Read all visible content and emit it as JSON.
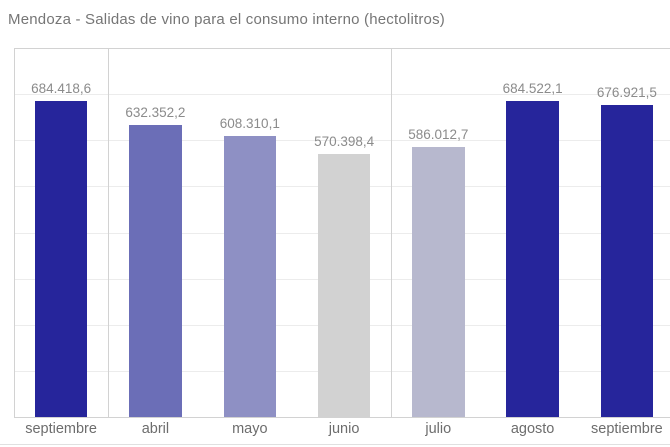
{
  "title": "Mendoza - Salidas de vino para el consumo interno (hectolitros)",
  "chart_data": {
    "type": "bar",
    "title": "Mendoza - Salidas de vino para el consumo interno (hectolitros)",
    "categories": [
      "septiembre",
      "abril",
      "mayo",
      "junio",
      "julio",
      "agosto",
      "septiembre"
    ],
    "values": [
      684418.6,
      632352.2,
      608310.1,
      570398.4,
      586012.7,
      684522.1,
      676921.5
    ],
    "value_labels": [
      "684.418,6",
      "632.352,2",
      "608.310,1",
      "570.398,4",
      "586.012,7",
      "684.522,1",
      "676.921,5"
    ],
    "bar_colors": [
      "#26259b",
      "#6b6eb7",
      "#8e90c4",
      "#d2d2d2",
      "#b7b8ce",
      "#26259b",
      "#26259b"
    ],
    "pane_group_sizes": [
      1,
      3,
      3
    ],
    "xlabel": "",
    "ylabel": "",
    "ylim": [
      0,
      800000
    ],
    "gridline_step": 100000,
    "grid": true,
    "legend": null,
    "units": "hectolitros"
  },
  "styles": {
    "background": "#ffffff",
    "title_color": "#767676",
    "value_label_color": "#8b8b8b",
    "axis_label_color": "#6d6d6d",
    "gridline_color": "#ececec",
    "pane_border_color": "#d2d2d2",
    "bottom_divider_color": "#e0e0e0"
  }
}
